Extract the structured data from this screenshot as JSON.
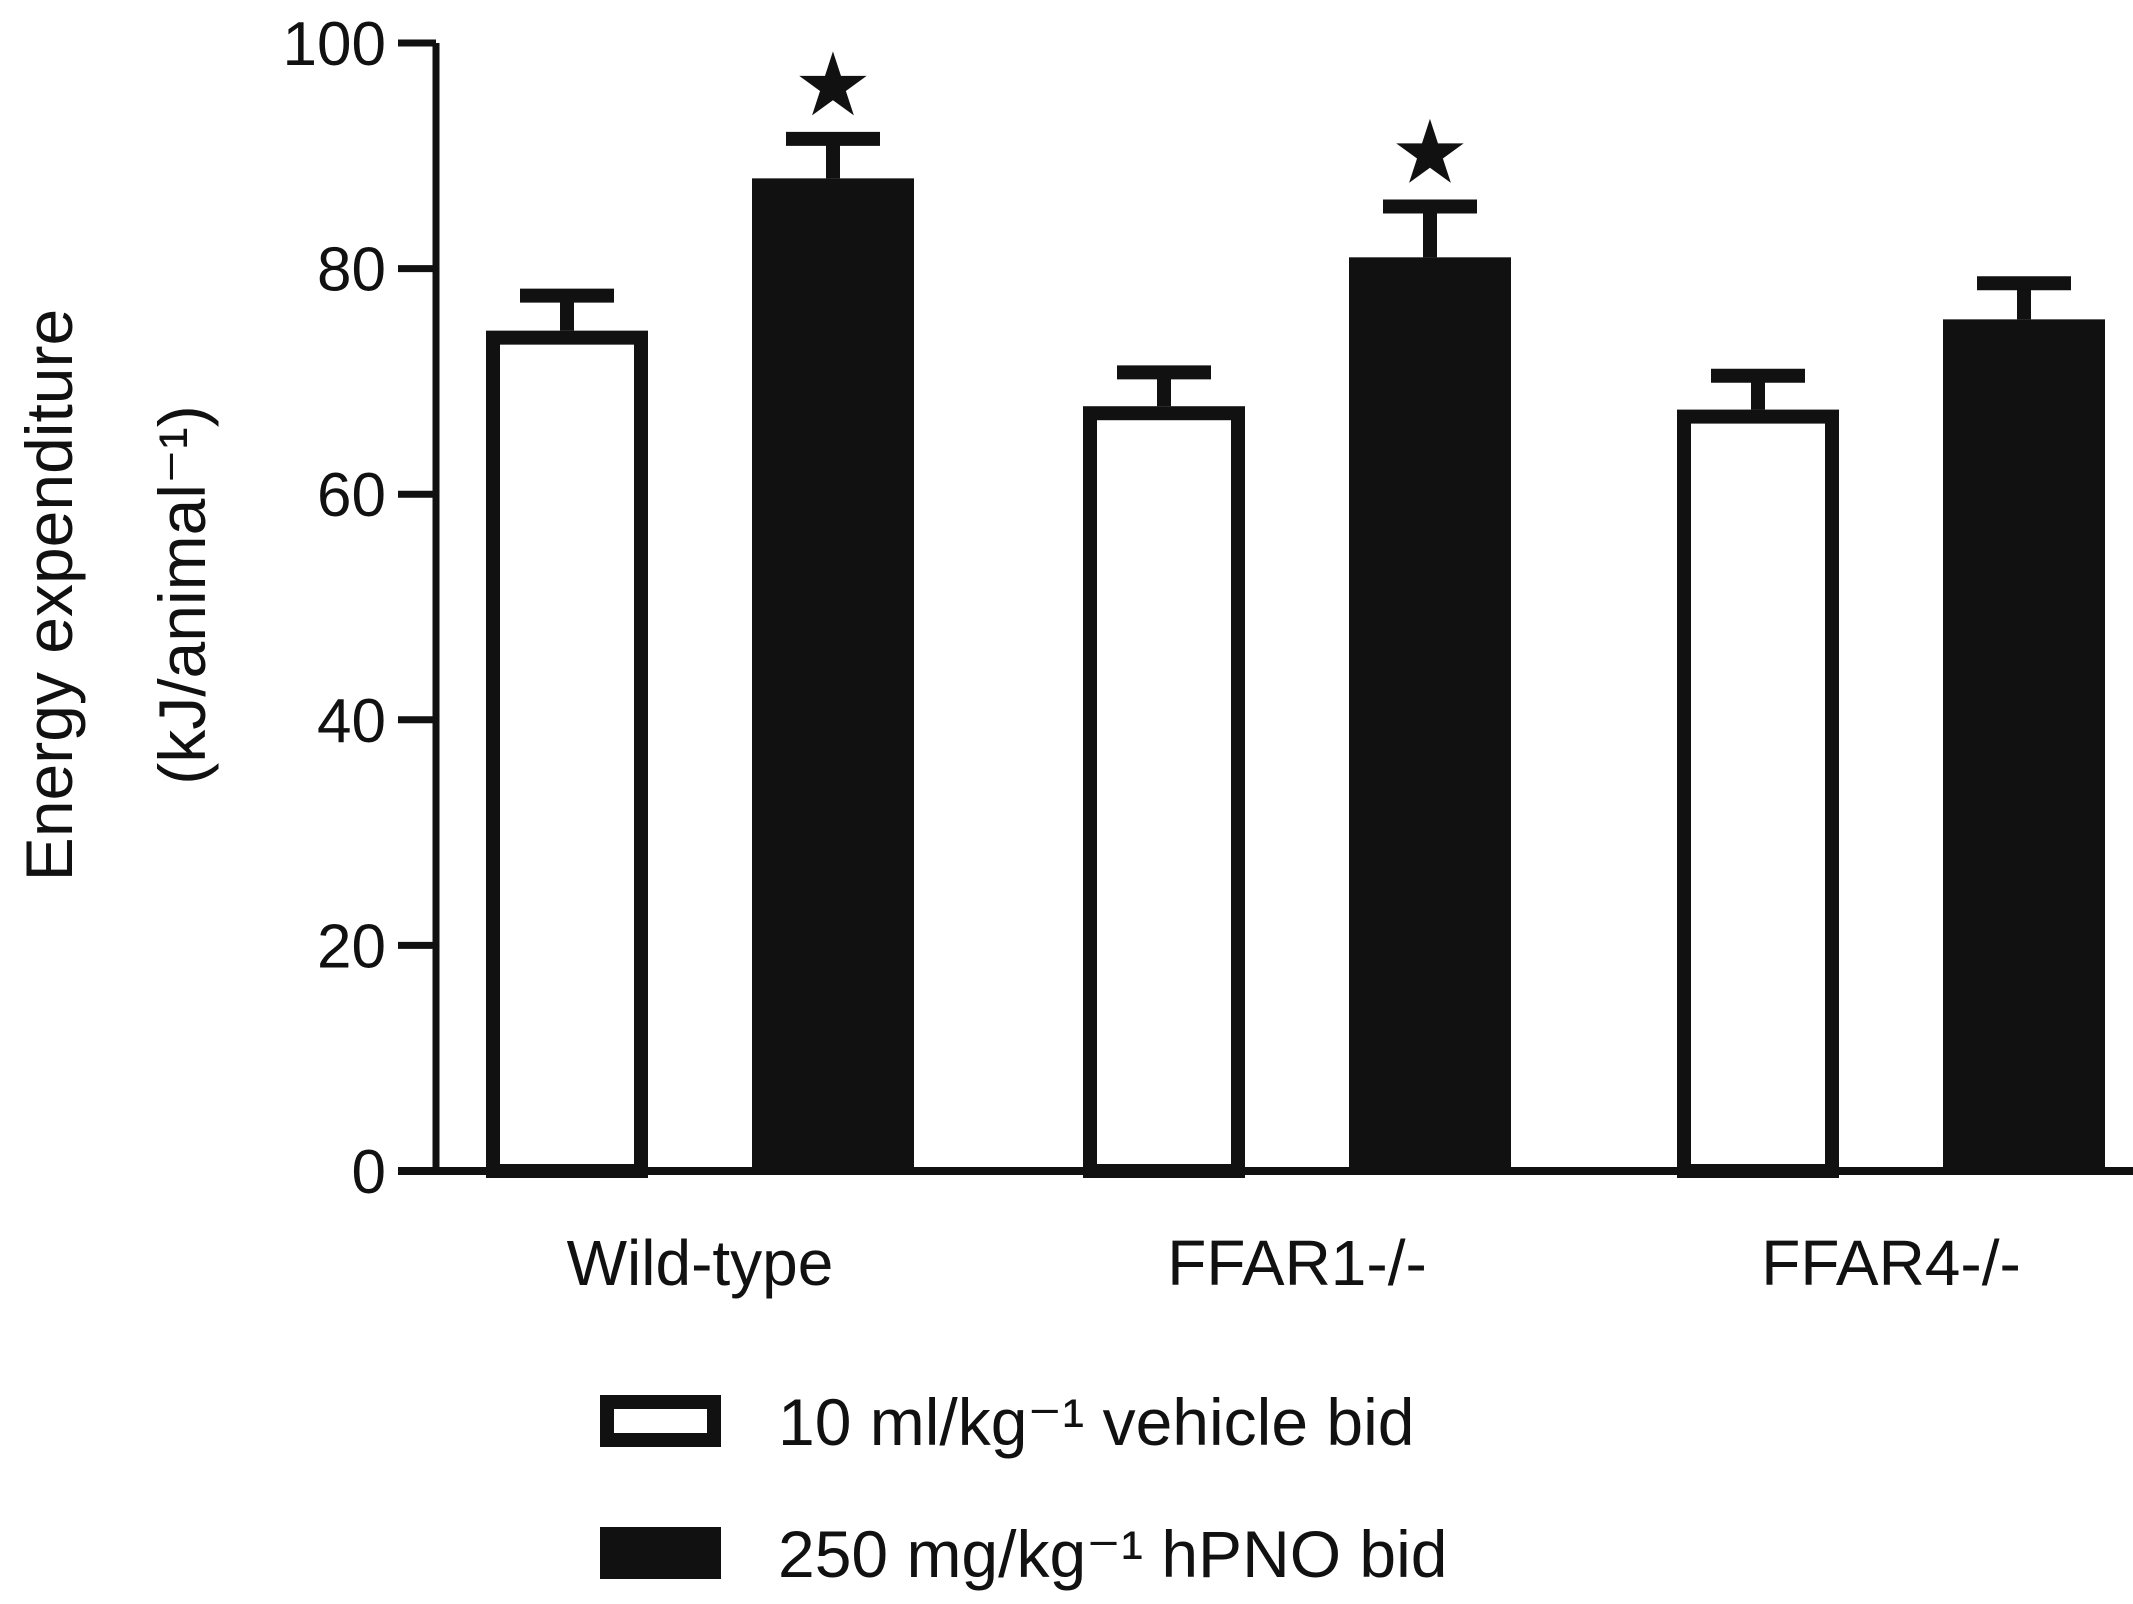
{
  "chart_data": {
    "type": "bar",
    "title": "",
    "ylabel_line1": "Energy expenditure",
    "ylabel_line2": "(kJ/animal⁻¹)",
    "xlabel": "",
    "ylim": [
      0,
      100
    ],
    "yticks": [
      0,
      20,
      40,
      60,
      80,
      100
    ],
    "categories": [
      "Wild-type",
      "FFAR1-/-",
      "FFAR4-/-"
    ],
    "series": [
      {
        "name": "10 ml/kg⁻¹ vehicle bid",
        "fill": "#ffffff",
        "stroke": "#111111",
        "values": [
          74.5,
          67.8,
          67.5
        ],
        "errors": [
          3.1,
          3.0,
          3.0
        ]
      },
      {
        "name": "250 mg/kg⁻¹ hPNO bid",
        "fill": "#111111",
        "stroke": "#111111",
        "values": [
          88.0,
          81.0,
          75.5
        ],
        "errors": [
          3.5,
          4.5,
          3.2
        ]
      }
    ],
    "significance": [
      {
        "category": 0,
        "series": 1,
        "symbol": "★"
      },
      {
        "category": 1,
        "series": 1,
        "symbol": "★"
      }
    ],
    "legend_position": "bottom-center",
    "grid": false
  }
}
